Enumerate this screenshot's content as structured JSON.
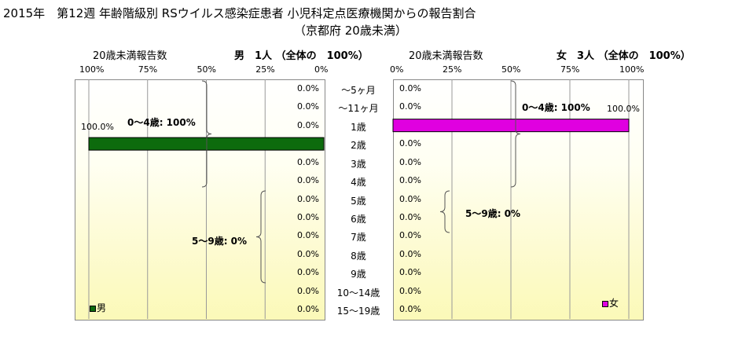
{
  "header": {
    "title": "2015年　第12週 年齢階級別 RSウイルス感染症患者 小児科定点医療機関からの報告割合",
    "subtitle": "（京都府 20歳未満）"
  },
  "chart_data": {
    "type": "bar",
    "orientation": "horizontal",
    "categories": [
      "～5ヶ月",
      "～11ヶ月",
      "1歳",
      "2歳",
      "3歳",
      "4歳",
      "5歳",
      "6歳",
      "7歳",
      "8歳",
      "9歳",
      "10～14歳",
      "15～19歳"
    ],
    "axis_ticks_male": [
      "100%",
      "75%",
      "50%",
      "25%",
      "0%"
    ],
    "axis_ticks_female": [
      "0%",
      "25%",
      "50%",
      "75%",
      "100%"
    ],
    "male": {
      "axis_label": "20歳未満報告数",
      "header": "男　1人 （全体の　100%）",
      "legend": "男",
      "color": "#0d6b0d",
      "values": [
        0,
        0,
        0,
        100,
        0,
        0,
        0,
        0,
        0,
        0,
        0,
        0,
        0
      ],
      "labels": [
        "0.0%",
        "0.0%",
        "0.0%",
        "100.0%",
        "0.0%",
        "0.0%",
        "0.0%",
        "0.0%",
        "0.0%",
        "0.0%",
        "0.0%",
        "0.0%",
        "0.0%"
      ],
      "brace_0_4": "0～4歳: 100%",
      "brace_5_9": "5～9歳: 0%"
    },
    "female": {
      "axis_label": "20歳未満報告数",
      "header": "女　3人 （全体の　100%）",
      "legend": "女",
      "color": "#e000e0",
      "values": [
        0,
        0,
        100,
        0,
        0,
        0,
        0,
        0,
        0,
        0,
        0,
        0,
        0
      ],
      "labels": [
        "0.0%",
        "0.0%",
        "100.0%",
        "0.0%",
        "0.0%",
        "0.0%",
        "0.0%",
        "0.0%",
        "0.0%",
        "0.0%",
        "0.0%",
        "0.0%",
        "0.0%"
      ],
      "brace_0_4": "0～4歳: 100%",
      "brace_5_9": "5～9歳: 0%"
    },
    "xlim": [
      0,
      100
    ]
  }
}
